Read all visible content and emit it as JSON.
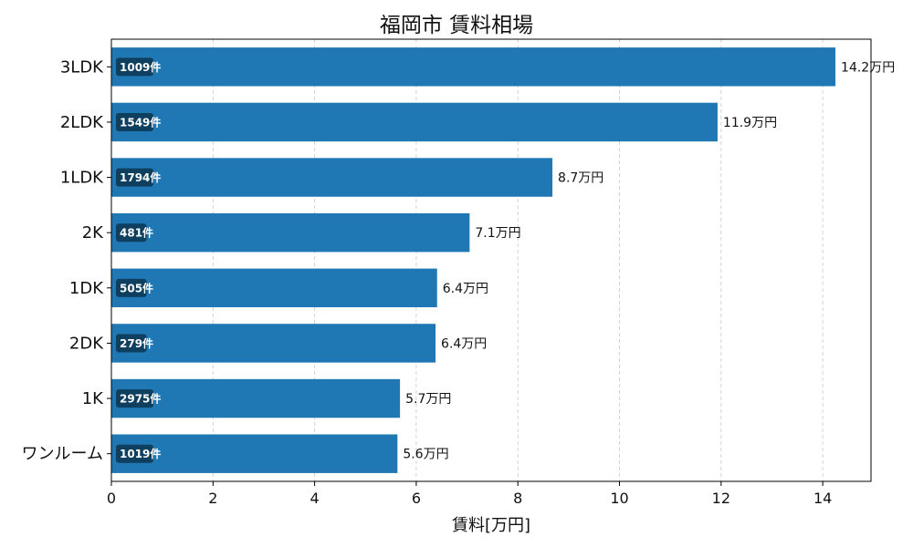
{
  "chart_data": {
    "type": "bar",
    "orientation": "horizontal",
    "title": "福岡市 賃料相場",
    "xlabel": "賃料[万円]",
    "ylabel": "",
    "xlim": [
      0,
      14.95
    ],
    "x_ticks": [
      0,
      2,
      4,
      6,
      8,
      10,
      12,
      14
    ],
    "grid": "vertical-dashed",
    "bar_color": "#1f77b4",
    "count_badge_color": "#0f3f5f",
    "categories": [
      "3LDK",
      "2LDK",
      "1LDK",
      "2K",
      "1DK",
      "2DK",
      "1K",
      "ワンルーム"
    ],
    "values": [
      14.25,
      11.93,
      8.68,
      7.05,
      6.41,
      6.38,
      5.68,
      5.63
    ],
    "value_labels": [
      "14.2万円",
      "11.9万円",
      "8.7万円",
      "7.1万円",
      "6.4万円",
      "6.4万円",
      "5.7万円",
      "5.6万円"
    ],
    "count_labels": [
      "1009件",
      "1549件",
      "1794件",
      "481件",
      "505件",
      "279件",
      "2975件",
      "1019件"
    ]
  }
}
